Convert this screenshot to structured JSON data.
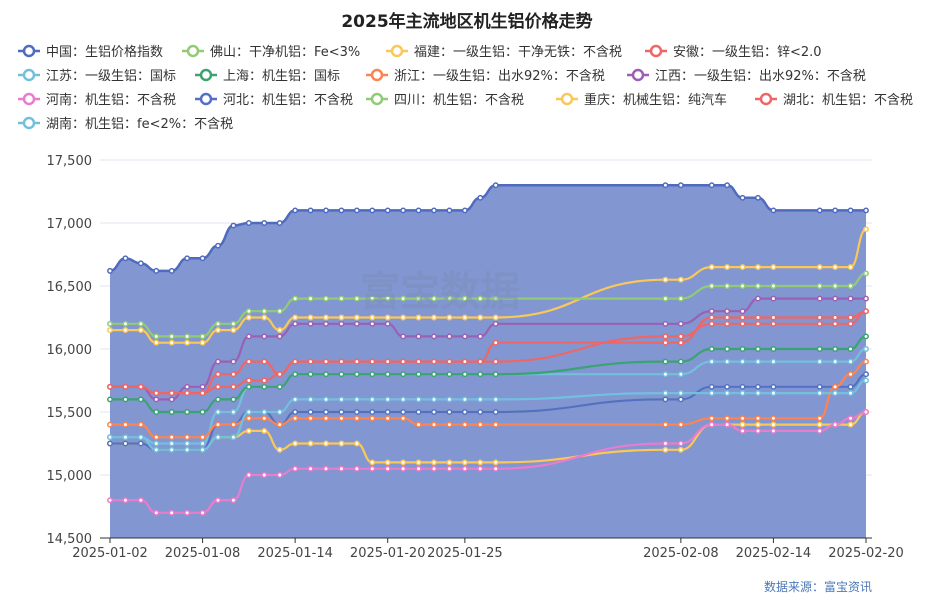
{
  "chart_data": {
    "type": "line",
    "title": "2025年主流地区机生铝价格走势",
    "source": "数据来源：富宝资讯",
    "watermark": "富宝数据",
    "ylim": [
      14500,
      17500
    ],
    "yticks": [
      14500,
      15000,
      15500,
      16000,
      16500,
      17000,
      17500
    ],
    "ytick_labels": [
      "14,500",
      "15,000",
      "15,500",
      "16,000",
      "16,500",
      "17,000",
      "17,500"
    ],
    "xtick_labels": [
      "2025-01-02",
      "2025-01-08",
      "2025-01-14",
      "2025-01-20",
      "2025-01-25",
      "2025-02-08",
      "2025-02-14",
      "2025-02-20"
    ],
    "x": [
      "2025-01-02",
      "2025-01-03",
      "2025-01-04",
      "2025-01-05",
      "2025-01-06",
      "2025-01-07",
      "2025-01-08",
      "2025-01-09",
      "2025-01-10",
      "2025-01-11",
      "2025-01-12",
      "2025-01-13",
      "2025-01-14",
      "2025-01-15",
      "2025-01-16",
      "2025-01-17",
      "2025-01-18",
      "2025-01-19",
      "2025-01-20",
      "2025-01-21",
      "2025-01-22",
      "2025-01-23",
      "2025-01-24",
      "2025-01-25",
      "2025-01-26",
      "2025-01-27",
      "2025-02-07",
      "2025-02-08",
      "2025-02-10",
      "2025-02-11",
      "2025-02-12",
      "2025-02-13",
      "2025-02-14",
      "2025-02-17",
      "2025-02-18",
      "2025-02-19",
      "2025-02-20"
    ],
    "series": [
      {
        "name": "中国：生铝价格指数",
        "color": "#4f6bbf",
        "area": true,
        "values": [
          16620,
          16720,
          16680,
          16620,
          16620,
          16720,
          16720,
          16820,
          16980,
          17000,
          17000,
          17000,
          17100,
          17100,
          17100,
          17100,
          17100,
          17100,
          17100,
          17100,
          17100,
          17100,
          17100,
          17100,
          17200,
          17300,
          17300,
          17300,
          17300,
          17300,
          17200,
          17200,
          17100,
          17100,
          17100,
          17100,
          17100
        ]
      },
      {
        "name": "佛山：干净机铝：Fe<3%",
        "color": "#91cc75",
        "values": [
          16200,
          16200,
          16200,
          16100,
          16100,
          16100,
          16100,
          16200,
          16200,
          16300,
          16300,
          16300,
          16400,
          16400,
          16400,
          16400,
          16400,
          16400,
          16400,
          16400,
          16400,
          16400,
          16400,
          16400,
          16400,
          16400,
          16400,
          16400,
          16500,
          16500,
          16500,
          16500,
          16500,
          16500,
          16500,
          16500,
          16600
        ]
      },
      {
        "name": "福建：一级生铝：干净无铁：不含税",
        "color": "#fac858",
        "values": [
          16150,
          16150,
          16150,
          16050,
          16050,
          16050,
          16050,
          16150,
          16150,
          16250,
          16250,
          16150,
          16250,
          16250,
          16250,
          16250,
          16250,
          16250,
          16250,
          16250,
          16250,
          16250,
          16250,
          16250,
          16250,
          16250,
          16550,
          16550,
          16650,
          16650,
          16650,
          16650,
          16650,
          16650,
          16650,
          16650,
          16950
        ]
      },
      {
        "name": "安徽：一级生铝：锌<2.0",
        "color": "#ee6666",
        "values": [
          15700,
          15700,
          15700,
          15650,
          15650,
          15650,
          15650,
          15700,
          15700,
          15750,
          15750,
          15800,
          15900,
          15900,
          15900,
          15900,
          15900,
          15900,
          15900,
          15900,
          15900,
          15900,
          15900,
          15900,
          15900,
          16050,
          16050,
          16050,
          16250,
          16250,
          16250,
          16250,
          16250,
          16250,
          16250,
          16250,
          16300
        ]
      },
      {
        "name": "江苏：一级生铝：国标",
        "color": "#73c0de",
        "values": [
          15300,
          15300,
          15300,
          15200,
          15200,
          15200,
          15200,
          15300,
          15300,
          15500,
          15500,
          15500,
          15600,
          15600,
          15600,
          15600,
          15600,
          15600,
          15600,
          15600,
          15600,
          15600,
          15600,
          15600,
          15600,
          15600,
          15650,
          15650,
          15650,
          15650,
          15650,
          15650,
          15650,
          15650,
          15650,
          15650,
          15750
        ]
      },
      {
        "name": "上海：机生铝：国标",
        "color": "#3ba272",
        "values": [
          15600,
          15600,
          15600,
          15500,
          15500,
          15500,
          15500,
          15600,
          15600,
          15700,
          15700,
          15700,
          15800,
          15800,
          15800,
          15800,
          15800,
          15800,
          15800,
          15800,
          15800,
          15800,
          15800,
          15800,
          15800,
          15800,
          15900,
          15900,
          16000,
          16000,
          16000,
          16000,
          16000,
          16000,
          16000,
          16000,
          16100
        ]
      },
      {
        "name": "浙江：一级生铝：出水92%：不含税",
        "color": "#fc8452",
        "values": [
          15400,
          15400,
          15400,
          15300,
          15300,
          15300,
          15300,
          15400,
          15400,
          15450,
          15450,
          15400,
          15450,
          15450,
          15450,
          15450,
          15450,
          15450,
          15450,
          15450,
          15400,
          15400,
          15400,
          15400,
          15400,
          15400,
          15400,
          15400,
          15450,
          15450,
          15450,
          15450,
          15450,
          15450,
          15700,
          15800,
          15900
        ]
      },
      {
        "name": "江西：一级生铝：出水92%：不含税",
        "color": "#9a60b4",
        "values": [
          15700,
          15700,
          15700,
          15600,
          15600,
          15700,
          15700,
          15900,
          15900,
          16100,
          16100,
          16100,
          16200,
          16200,
          16200,
          16200,
          16200,
          16200,
          16200,
          16100,
          16100,
          16100,
          16100,
          16100,
          16100,
          16200,
          16200,
          16200,
          16300,
          16300,
          16300,
          16400,
          16400,
          16400,
          16400,
          16400,
          16400
        ]
      },
      {
        "name": "河南：机生铝：不含税",
        "color": "#ea7ccc",
        "values": [
          14800,
          14800,
          14800,
          14700,
          14700,
          14700,
          14700,
          14800,
          14800,
          15000,
          15000,
          15000,
          15050,
          15050,
          15050,
          15050,
          15050,
          15050,
          15050,
          15050,
          15050,
          15050,
          15050,
          15050,
          15050,
          15050,
          15250,
          15250,
          15400,
          15400,
          15350,
          15350,
          15350,
          15350,
          15400,
          15450,
          15500
        ]
      },
      {
        "name": "河北：机生铝：不含税",
        "color": "#5470c6",
        "values": [
          15250,
          15250,
          15250,
          15200,
          15200,
          15200,
          15200,
          15400,
          15400,
          15500,
          15500,
          15400,
          15500,
          15500,
          15500,
          15500,
          15500,
          15500,
          15500,
          15500,
          15500,
          15500,
          15500,
          15500,
          15500,
          15500,
          15600,
          15600,
          15700,
          15700,
          15700,
          15700,
          15700,
          15700,
          15700,
          15700,
          15800
        ]
      },
      {
        "name": "四川：机生铝：不含税",
        "color": "#91cc75",
        "values": [
          15250,
          15250,
          15250,
          15200,
          15200,
          15200,
          15200,
          15300,
          15300,
          15500,
          15500,
          15400,
          15500,
          15500,
          15500,
          15500,
          15500,
          15500,
          15500,
          15500,
          15500,
          15500,
          15500,
          15500,
          15500,
          15500,
          15600,
          15600,
          15700,
          15700,
          15700,
          15700,
          15700,
          15700,
          15700,
          15700,
          15800
        ]
      },
      {
        "name": "重庆：机械生铝：纯汽车",
        "color": "#fac858",
        "values": [
          15250,
          15250,
          15250,
          15200,
          15200,
          15200,
          15200,
          15300,
          15300,
          15350,
          15350,
          15200,
          15250,
          15250,
          15250,
          15250,
          15250,
          15100,
          15100,
          15100,
          15100,
          15100,
          15100,
          15100,
          15100,
          15100,
          15200,
          15200,
          15400,
          15400,
          15400,
          15400,
          15400,
          15400,
          15400,
          15400,
          15500
        ]
      },
      {
        "name": "湖北：机生铝：不含税",
        "color": "#ee6666",
        "values": [
          15700,
          15700,
          15700,
          15650,
          15650,
          15650,
          15650,
          15800,
          15800,
          15900,
          15900,
          15800,
          15900,
          15900,
          15900,
          15900,
          15900,
          15900,
          15900,
          15900,
          15900,
          15900,
          15900,
          15900,
          15900,
          15900,
          16100,
          16100,
          16200,
          16200,
          16200,
          16200,
          16200,
          16200,
          16200,
          16200,
          16300
        ]
      },
      {
        "name": "湖南：机生铝：fe<2%：不含税",
        "color": "#73c0de",
        "values": [
          15300,
          15300,
          15300,
          15250,
          15250,
          15250,
          15250,
          15500,
          15500,
          15700,
          15700,
          15700,
          15800,
          15800,
          15800,
          15800,
          15800,
          15800,
          15800,
          15800,
          15800,
          15800,
          15800,
          15800,
          15800,
          15800,
          15800,
          15800,
          15900,
          15900,
          15900,
          15900,
          15900,
          15900,
          15900,
          15900,
          16000
        ]
      }
    ]
  }
}
